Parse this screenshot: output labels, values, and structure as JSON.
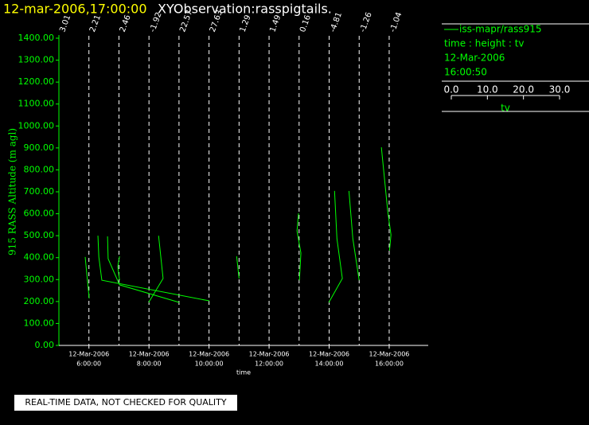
{
  "header": {
    "date": "12-mar-2006,17:00:00",
    "name": "XYObservation:rasspigtails."
  },
  "chart_data": {
    "type": "line",
    "y_label": "915 RASS Altitude (m agl)",
    "x_label": "time",
    "color": "#00ff00",
    "xlim": [
      5,
      17.3
    ],
    "ylim": [
      0,
      1400
    ],
    "yticks": [
      {
        "value": 0,
        "label": "0.00"
      },
      {
        "value": 100,
        "label": "100.00"
      },
      {
        "value": 200,
        "label": "200.00"
      },
      {
        "value": 300,
        "label": "300.00"
      },
      {
        "value": 400,
        "label": "400.00"
      },
      {
        "value": 500,
        "label": "500.00"
      },
      {
        "value": 600,
        "label": "600.00"
      },
      {
        "value": 700,
        "label": "700.00"
      },
      {
        "value": 800,
        "label": "800.00"
      },
      {
        "value": 900,
        "label": "900.00"
      },
      {
        "value": 1000,
        "label": "1000.00"
      },
      {
        "value": 1100,
        "label": "1100.00"
      },
      {
        "value": 1200,
        "label": "1200.00"
      },
      {
        "value": 1300,
        "label": "1300.00"
      },
      {
        "value": 1400,
        "label": "1400.00"
      }
    ],
    "xticks": [
      {
        "value": 6,
        "label": [
          "12-Mar-2006",
          "6:00:00"
        ]
      },
      {
        "value": 8,
        "label": [
          "12-Mar-2006",
          "8:00:00"
        ]
      },
      {
        "value": 10,
        "label": [
          "12-Mar-2006",
          "10:00:00"
        ]
      },
      {
        "value": 12,
        "label": [
          "12-Mar-2006",
          "12:00:00"
        ]
      },
      {
        "value": 14,
        "label": [
          "12-Mar-2006",
          "14:00:00"
        ]
      },
      {
        "value": 16,
        "label": [
          "12-Mar-2006",
          "16:00:00"
        ]
      }
    ],
    "reference_lines": {
      "x": [
        5,
        6,
        7,
        8,
        9,
        10,
        11,
        12,
        13,
        14,
        15,
        16
      ],
      "labels": [
        3.01,
        2.21,
        2.46,
        -1.92,
        22.57,
        27.63,
        1.29,
        1.49,
        0.16,
        -4.81,
        -1.26,
        -1.04
      ]
    },
    "traces": [
      {
        "x": [
          5.875,
          6.008
        ],
        "values": [
          403,
          214
        ]
      },
      {
        "x": [
          6.3,
          6.33,
          6.43,
          10.01
        ],
        "values": [
          500,
          403,
          297,
          203
        ]
      },
      {
        "x": [
          6.62,
          6.64,
          7.02,
          9.01
        ],
        "values": [
          497,
          395,
          276,
          196
        ]
      },
      {
        "x": [
          7.02,
          6.96,
          7.02
        ],
        "values": [
          406,
          359,
          297
        ]
      },
      {
        "x": [
          8.32,
          8.47,
          7.99
        ],
        "values": [
          500,
          305,
          196
        ]
      },
      {
        "x": [
          10.92,
          11.0
        ],
        "values": [
          406,
          305
        ]
      },
      {
        "x": [
          12.98,
          12.93,
          13.06,
          13.01
        ],
        "values": [
          602,
          522,
          421,
          297
        ]
      },
      {
        "x": [
          14.18,
          14.26,
          14.44,
          13.99
        ],
        "values": [
          704,
          486,
          305,
          196
        ]
      },
      {
        "x": [
          14.66,
          14.79,
          15.0
        ],
        "values": [
          704,
          486,
          297
        ]
      },
      {
        "x": [
          15.74,
          15.95,
          16.06,
          16.01
        ],
        "values": [
          903,
          613,
          504,
          432
        ]
      }
    ]
  },
  "legend": {
    "name": "iss-mapr/rass915",
    "fields": "time : height : tv",
    "date": "12-Mar-2006",
    "time": "16:00:50",
    "scale_label": "tv",
    "scale_lim": [
      0,
      30
    ],
    "scale_ticks": [
      {
        "value": 0,
        "label": "0.0"
      },
      {
        "value": 10,
        "label": "10.0"
      },
      {
        "value": 20,
        "label": "20.0"
      },
      {
        "value": 30,
        "label": "30.0"
      }
    ]
  },
  "footer": "REAL-TIME DATA, NOT CHECKED FOR QUALITY"
}
